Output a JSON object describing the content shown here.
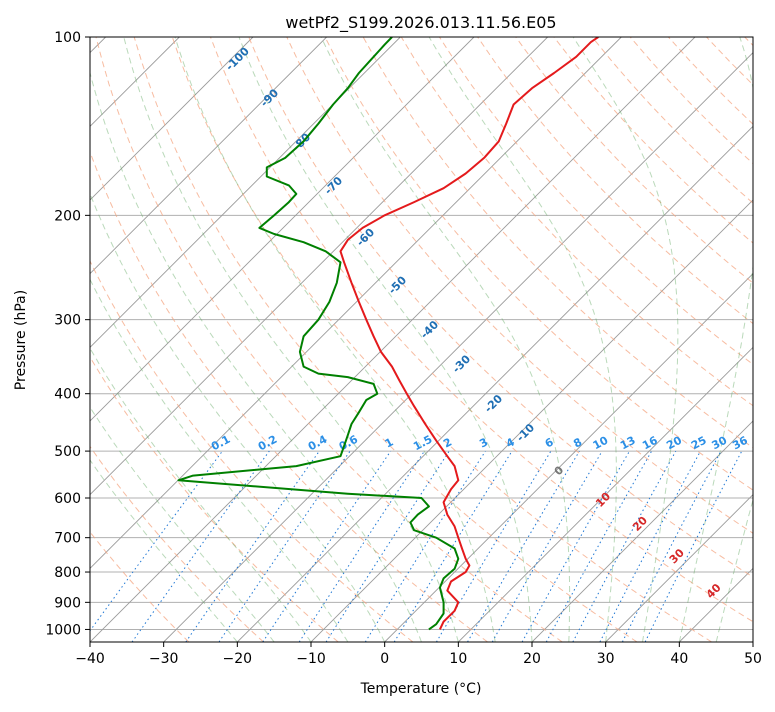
{
  "chart_data": {
    "type": "line",
    "title": "wetPf2_S199.2026.013.11.56.E05",
    "xlabel": "Temperature (°C)",
    "ylabel": "Pressure (hPa)",
    "xlim": [
      -40,
      50
    ],
    "ylim": [
      1050,
      100
    ],
    "y_scale": "log",
    "grid": true,
    "x_ticks": [
      -40,
      -30,
      -20,
      -10,
      0,
      10,
      20,
      30,
      40,
      50
    ],
    "y_ticks": [
      100,
      200,
      300,
      400,
      500,
      600,
      700,
      800,
      900,
      1000
    ],
    "series": [
      {
        "name": "",
        "color": "#e41a1c",
        "points": [
          [
            7.5,
            1000
          ],
          [
            8,
            970
          ],
          [
            9.5,
            930
          ],
          [
            10,
            900
          ],
          [
            8.5,
            860
          ],
          [
            9,
            830
          ],
          [
            11,
            800
          ],
          [
            11.5,
            780
          ],
          [
            11,
            760
          ],
          [
            10.5,
            730
          ],
          [
            10,
            700
          ],
          [
            9.5,
            670
          ],
          [
            8.5,
            640
          ],
          [
            8,
            610
          ],
          [
            9,
            580
          ],
          [
            10,
            560
          ],
          [
            9.5,
            530
          ],
          [
            8.5,
            510
          ],
          [
            7,
            480
          ],
          [
            5.5,
            450
          ],
          [
            4,
            420
          ],
          [
            3,
            400
          ],
          [
            2,
            380
          ],
          [
            1,
            360
          ],
          [
            -0.5,
            340
          ],
          [
            -1.5,
            320
          ],
          [
            -2.5,
            300
          ],
          [
            -3.5,
            280
          ],
          [
            -4.5,
            260
          ],
          [
            -5.5,
            240
          ],
          [
            -6,
            230
          ],
          [
            -5,
            220
          ],
          [
            -3,
            210
          ],
          [
            0,
            200
          ],
          [
            4,
            190
          ],
          [
            8,
            180
          ],
          [
            11,
            170
          ],
          [
            13.5,
            160
          ],
          [
            15.5,
            150
          ],
          [
            16.5,
            140
          ],
          [
            17.5,
            130
          ],
          [
            20,
            122
          ],
          [
            23,
            115
          ],
          [
            26,
            108
          ],
          [
            28,
            102
          ],
          [
            29,
            100
          ]
        ]
      },
      {
        "name": "",
        "color": "#008000",
        "points": [
          [
            6,
            1000
          ],
          [
            7,
            980
          ],
          [
            8,
            940
          ],
          [
            8,
            900
          ],
          [
            7.5,
            850
          ],
          [
            8,
            820
          ],
          [
            9.5,
            790
          ],
          [
            10,
            760
          ],
          [
            9.5,
            730
          ],
          [
            7,
            700
          ],
          [
            4,
            680
          ],
          [
            3.5,
            660
          ],
          [
            4.5,
            640
          ],
          [
            6,
            620
          ],
          [
            5,
            600
          ],
          [
            -5,
            590
          ],
          [
            -28,
            560
          ],
          [
            -26,
            550
          ],
          [
            -12,
            530
          ],
          [
            -6,
            510
          ],
          [
            -5.5,
            490
          ],
          [
            -5,
            470
          ],
          [
            -4.5,
            450
          ],
          [
            -3.5,
            430
          ],
          [
            -2.5,
            410
          ],
          [
            -1,
            400
          ],
          [
            -1.5,
            385
          ],
          [
            -5,
            375
          ],
          [
            -9,
            370
          ],
          [
            -11,
            360
          ],
          [
            -11.5,
            340
          ],
          [
            -11,
            320
          ],
          [
            -9,
            300
          ],
          [
            -7.5,
            280
          ],
          [
            -6.5,
            260
          ],
          [
            -6,
            240
          ],
          [
            -8,
            230
          ],
          [
            -11,
            222
          ],
          [
            -15,
            215
          ],
          [
            -17,
            210
          ],
          [
            -15,
            200
          ],
          [
            -13,
            190
          ],
          [
            -12,
            184
          ],
          [
            -13,
            178
          ],
          [
            -16,
            172
          ],
          [
            -16,
            166
          ],
          [
            -13.5,
            160
          ],
          [
            -11,
            150
          ],
          [
            -9,
            140
          ],
          [
            -7,
            130
          ],
          [
            -5,
            122
          ],
          [
            -3.5,
            115
          ],
          [
            -1.5,
            108
          ],
          [
            0,
            103
          ],
          [
            1,
            100
          ]
        ]
      }
    ],
    "dry_adiabat_labels": [
      "-100",
      "-90",
      "-80",
      "-70",
      "-60",
      "-50",
      "-40",
      "-30",
      "-20",
      "-10"
    ],
    "moist_adiabat_labels": [
      "0",
      "10",
      "20",
      "30",
      "40"
    ],
    "mixing_ratio_labels": [
      "0.1",
      "0.2",
      "0.4",
      "0.6",
      "1",
      "1.5",
      "2",
      "3",
      "4",
      "6",
      "8",
      "10",
      "13",
      "16",
      "20",
      "25",
      "30",
      "36"
    ]
  }
}
